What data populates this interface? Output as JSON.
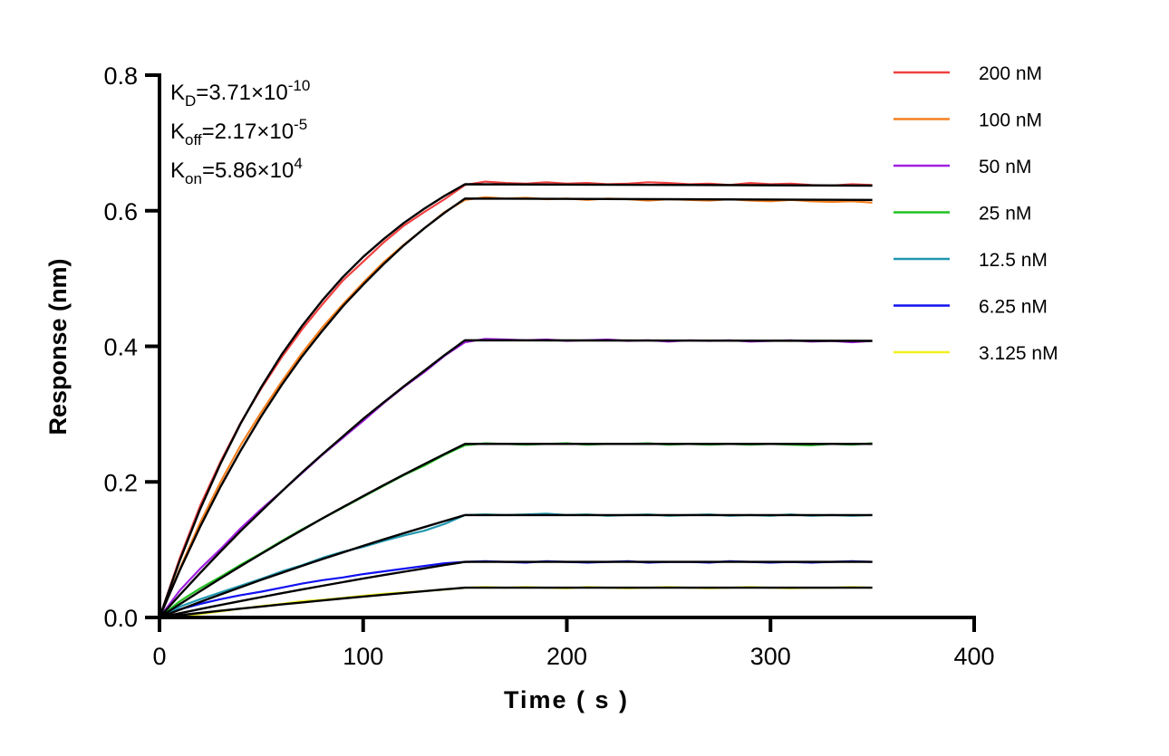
{
  "chart_data": {
    "type": "line",
    "title": "",
    "xlabel": "Time ( s )",
    "ylabel": "Response (nm)",
    "xlim": [
      0,
      400
    ],
    "ylim": [
      0,
      0.8
    ],
    "xticks": [
      0,
      100,
      200,
      300,
      400
    ],
    "yticks": [
      0.0,
      0.2,
      0.4,
      0.6,
      0.8
    ],
    "ytick_labels": [
      "0.0",
      "0.2",
      "0.4",
      "0.6",
      "0.8"
    ],
    "grid": false,
    "legend_position": "right",
    "annotations": [
      {
        "main": "K",
        "sub": "D",
        "value": "=3.71×10",
        "sup": "-10"
      },
      {
        "main": "K",
        "sub": "off",
        "value": "=2.17×10",
        "sup": "-5"
      },
      {
        "main": "K",
        "sub": "on",
        "value": "=5.86×10",
        "sup": "4"
      }
    ],
    "x": [
      0,
      10,
      20,
      30,
      40,
      50,
      60,
      70,
      80,
      90,
      100,
      110,
      120,
      130,
      140,
      150,
      160,
      170,
      180,
      190,
      200,
      210,
      220,
      230,
      240,
      250,
      260,
      270,
      280,
      290,
      300,
      310,
      320,
      330,
      340,
      350
    ],
    "fit_x": [
      0,
      10,
      20,
      30,
      40,
      50,
      60,
      70,
      80,
      90,
      100,
      110,
      120,
      130,
      140,
      150,
      350
    ],
    "fit_color": "#000000",
    "series": [
      {
        "name": "200 nM",
        "color": "#f04040",
        "values": [
          0,
          0.088,
          0.165,
          0.23,
          0.288,
          0.338,
          0.384,
          0.425,
          0.462,
          0.497,
          0.525,
          0.553,
          0.578,
          0.598,
          0.617,
          0.638,
          0.643,
          0.641,
          0.64,
          0.642,
          0.64,
          0.641,
          0.639,
          0.64,
          0.642,
          0.641,
          0.639,
          0.64,
          0.638,
          0.641,
          0.639,
          0.64,
          0.638,
          0.637,
          0.639,
          0.638
        ],
        "fit": [
          0,
          0.0845,
          0.16,
          0.227,
          0.287,
          0.34,
          0.388,
          0.43,
          0.468,
          0.502,
          0.532,
          0.558,
          0.582,
          0.603,
          0.622,
          0.639,
          0.637
        ]
      },
      {
        "name": "100 nM",
        "color": "#f58020",
        "values": [
          0,
          0.072,
          0.14,
          0.2,
          0.255,
          0.303,
          0.348,
          0.39,
          0.428,
          0.462,
          0.494,
          0.524,
          0.55,
          0.574,
          0.598,
          0.616,
          0.62,
          0.618,
          0.619,
          0.617,
          0.618,
          0.616,
          0.618,
          0.617,
          0.615,
          0.617,
          0.616,
          0.615,
          0.617,
          0.615,
          0.614,
          0.616,
          0.614,
          0.613,
          0.614,
          0.612
        ],
        "fit": [
          0,
          0.07,
          0.134,
          0.193,
          0.247,
          0.297,
          0.343,
          0.385,
          0.423,
          0.459,
          0.491,
          0.521,
          0.549,
          0.574,
          0.597,
          0.618,
          0.616
        ]
      },
      {
        "name": "50 nM",
        "color": "#a020e0",
        "values": [
          0,
          0.04,
          0.072,
          0.101,
          0.132,
          0.16,
          0.186,
          0.213,
          0.24,
          0.265,
          0.29,
          0.316,
          0.34,
          0.362,
          0.386,
          0.406,
          0.411,
          0.41,
          0.409,
          0.41,
          0.408,
          0.409,
          0.41,
          0.408,
          0.409,
          0.407,
          0.409,
          0.408,
          0.409,
          0.407,
          0.408,
          0.409,
          0.407,
          0.408,
          0.406,
          0.408
        ],
        "fit": [
          0,
          0.0334,
          0.0657,
          0.0972,
          0.128,
          0.157,
          0.186,
          0.214,
          0.241,
          0.267,
          0.293,
          0.317,
          0.341,
          0.364,
          0.387,
          0.409,
          0.408
        ]
      },
      {
        "name": "25 nM",
        "color": "#20c020",
        "values": [
          0,
          0.024,
          0.043,
          0.06,
          0.078,
          0.095,
          0.113,
          0.13,
          0.146,
          0.162,
          0.178,
          0.194,
          0.21,
          0.224,
          0.24,
          0.254,
          0.257,
          0.256,
          0.255,
          0.256,
          0.257,
          0.255,
          0.256,
          0.256,
          0.257,
          0.255,
          0.256,
          0.255,
          0.256,
          0.255,
          0.256,
          0.255,
          0.254,
          0.256,
          0.255,
          0.257
        ],
        "fit": [
          0,
          0.0196,
          0.0387,
          0.0575,
          0.076,
          0.094,
          0.1117,
          0.129,
          0.1461,
          0.1627,
          0.1791,
          0.1951,
          0.2108,
          0.2261,
          0.2412,
          0.256,
          0.256
        ]
      },
      {
        "name": "12.5 nM",
        "color": "#2098b0",
        "values": [
          0,
          0.016,
          0.027,
          0.037,
          0.047,
          0.057,
          0.068,
          0.077,
          0.088,
          0.097,
          0.104,
          0.113,
          0.121,
          0.128,
          0.138,
          0.151,
          0.152,
          0.151,
          0.152,
          0.153,
          0.151,
          0.152,
          0.15,
          0.151,
          0.152,
          0.15,
          0.151,
          0.152,
          0.15,
          0.151,
          0.15,
          0.152,
          0.15,
          0.151,
          0.15,
          0.151
        ],
        "fit": [
          0,
          0.0115,
          0.0228,
          0.0339,
          0.0448,
          0.0555,
          0.0659,
          0.0761,
          0.0862,
          0.0959,
          0.1056,
          0.1151,
          0.1243,
          0.1333,
          0.1423,
          0.151,
          0.151
        ]
      },
      {
        "name": "6.25 nM",
        "color": "#1010f0",
        "values": [
          0,
          0.012,
          0.02,
          0.027,
          0.033,
          0.038,
          0.044,
          0.05,
          0.055,
          0.059,
          0.064,
          0.068,
          0.072,
          0.076,
          0.08,
          0.082,
          0.083,
          0.082,
          0.081,
          0.083,
          0.082,
          0.081,
          0.082,
          0.083,
          0.081,
          0.082,
          0.082,
          0.081,
          0.083,
          0.082,
          0.081,
          0.082,
          0.081,
          0.082,
          0.083,
          0.082
        ],
        "fit": [
          0,
          0.0063,
          0.0124,
          0.0184,
          0.0243,
          0.0301,
          0.0358,
          0.0413,
          0.0468,
          0.0521,
          0.0574,
          0.0625,
          0.0675,
          0.0724,
          0.0773,
          0.082,
          0.082
        ]
      },
      {
        "name": "3.125 nM",
        "color": "#f0f020",
        "values": [
          0,
          0.002,
          0.005,
          0.009,
          0.013,
          0.017,
          0.02,
          0.024,
          0.026,
          0.029,
          0.032,
          0.035,
          0.037,
          0.039,
          0.041,
          0.044,
          0.045,
          0.044,
          0.045,
          0.044,
          0.043,
          0.045,
          0.044,
          0.043,
          0.044,
          0.045,
          0.044,
          0.043,
          0.044,
          0.045,
          0.044,
          0.043,
          0.044,
          0.044,
          0.045,
          0.044
        ],
        "fit": [
          0,
          0.0034,
          0.0067,
          0.0099,
          0.0131,
          0.0162,
          0.0192,
          0.0222,
          0.0251,
          0.028,
          0.0308,
          0.0335,
          0.0362,
          0.0389,
          0.0415,
          0.044,
          0.044
        ]
      }
    ]
  }
}
